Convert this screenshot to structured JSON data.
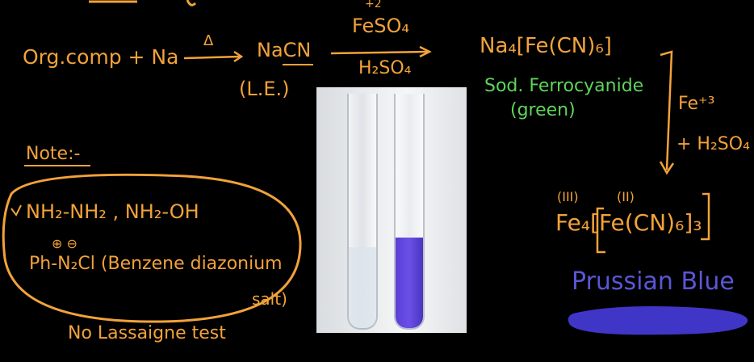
{
  "reaction1": {
    "reactants": "Org.comp + Na",
    "heat_symbol": "Δ",
    "product": "NaCN",
    "product_note": "(L.E.)"
  },
  "reaction2": {
    "reagent_charge": "+2",
    "reagent_top": "FeSO₄",
    "reagent_bottom": "H₂SO₄",
    "product": "Na₄[Fe(CN)₆]",
    "product_name": "Sod. Ferrocyanide",
    "product_color": "(green)"
  },
  "reaction3": {
    "reagent_ion": "Fe⁺³",
    "reagent_acid": "+ H₂SO₄",
    "ox_state_1": "(III)",
    "ox_state_2": "(II)",
    "product": "Fe₄[Fe(CN)₆]₃",
    "product_name": "Prussian Blue"
  },
  "note": {
    "title": "Note:-",
    "line1": "NH₂-NH₂ , NH₂-OH",
    "charges": "⊕ ⊖",
    "line2": "Ph-N₂Cl (Benzene diazonium",
    "line3": "salt)",
    "footer": "No Lassaigne test"
  },
  "colors": {
    "ink_orange": "#f2a23a",
    "ink_green": "#5fd35a",
    "prussian_blue": "#3f36c8",
    "background": "#000000"
  }
}
